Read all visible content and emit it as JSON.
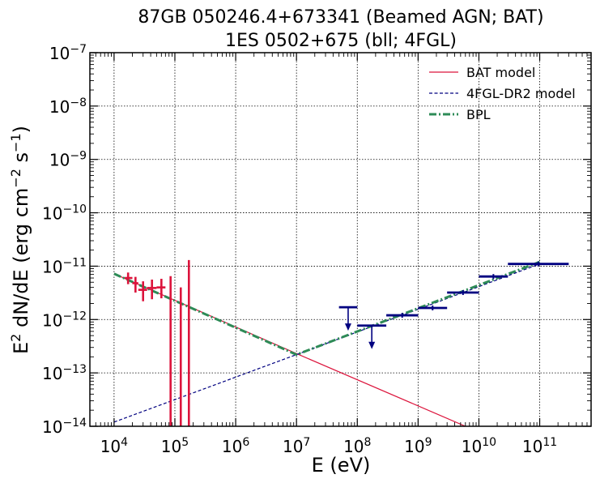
{
  "chart_data": {
    "type": "line",
    "title_lines": [
      "87GB 050246.4+673341 (Beamed AGN; BAT)",
      "1ES 0502+675 (bll; 4FGL)"
    ],
    "xlabel": "E (eV)",
    "ylabel_main": "E",
    "ylabel_sup1": "2",
    "ylabel_mid": " dN/dE (erg cm",
    "ylabel_sup2": "−2",
    "ylabel_mid2": " s",
    "ylabel_sup3": "−1",
    "ylabel_end": ")",
    "x_scale": "log",
    "y_scale": "log",
    "xlim": [
      4000,
      700000000000
    ],
    "ylim": [
      1e-14,
      1e-07
    ],
    "grid": true,
    "legend_placement": "top-right",
    "x_ticks": [
      {
        "value": 10000,
        "base": "10",
        "exp": "4"
      },
      {
        "value": 100000,
        "base": "10",
        "exp": "5"
      },
      {
        "value": 1000000,
        "base": "10",
        "exp": "6"
      },
      {
        "value": 10000000,
        "base": "10",
        "exp": "7"
      },
      {
        "value": 100000000,
        "base": "10",
        "exp": "8"
      },
      {
        "value": 1000000000,
        "base": "10",
        "exp": "9"
      },
      {
        "value": 10000000000,
        "base": "10",
        "exp": "10"
      },
      {
        "value": 100000000000,
        "base": "10",
        "exp": "11"
      }
    ],
    "y_ticks": [
      {
        "value": 1e-14,
        "base": "10",
        "exp": "−14"
      },
      {
        "value": 1e-13,
        "base": "10",
        "exp": "−13"
      },
      {
        "value": 1e-12,
        "base": "10",
        "exp": "−12"
      },
      {
        "value": 1e-11,
        "base": "10",
        "exp": "−11"
      },
      {
        "value": 1e-10,
        "base": "10",
        "exp": "−10"
      },
      {
        "value": 1e-09,
        "base": "10",
        "exp": "−9"
      },
      {
        "value": 1e-08,
        "base": "10",
        "exp": "−8"
      },
      {
        "value": 1e-07,
        "base": "10",
        "exp": "−7"
      }
    ],
    "series": [
      {
        "name": "BAT model",
        "color": "#dc143c",
        "style": "solid",
        "x": [
          10000,
          10000000,
          6000000000
        ],
        "y": [
          7.2e-12,
          2.3e-13,
          1e-14
        ]
      },
      {
        "name": "4FGL-DR2 model",
        "color": "#000080",
        "style": "dashed",
        "x": [
          10000,
          10000000,
          100000000000
        ],
        "y": [
          1.2e-14,
          2.2e-13,
          1.1e-11
        ]
      },
      {
        "name": "BPL",
        "color": "#2e8b57",
        "style": "dashdot",
        "x": [
          10000,
          10000000,
          100000000000
        ],
        "y": [
          7.2e-12,
          2.2e-13,
          1.2e-11
        ]
      }
    ],
    "bat_points": {
      "color": "#dc143c",
      "points": [
        {
          "x": 17000,
          "xlo": 15000,
          "xhi": 20000,
          "y": 6e-12,
          "ylo": 4.6e-12,
          "yhi": 7.6e-12
        },
        {
          "x": 22500,
          "xlo": 20000,
          "xhi": 25000,
          "y": 4.8e-12,
          "ylo": 3.2e-12,
          "yhi": 6.3e-12
        },
        {
          "x": 30000,
          "xlo": 25000,
          "xhi": 35000,
          "y": 3.6e-12,
          "ylo": 2.2e-12,
          "yhi": 5.2e-12
        },
        {
          "x": 42000,
          "xlo": 35000,
          "xhi": 50000,
          "y": 3.9e-12,
          "ylo": 2.4e-12,
          "yhi": 5.6e-12
        },
        {
          "x": 60000,
          "xlo": 50000,
          "xhi": 70000,
          "y": 4e-12,
          "ylo": 2.5e-12,
          "yhi": 5.8e-12
        },
        {
          "x": 85000,
          "xlo": 85000,
          "xhi": 85000,
          "y": 3e-12,
          "ylo": 1e-14,
          "yhi": 6.5e-12
        },
        {
          "x": 125000,
          "xlo": 125000,
          "xhi": 125000,
          "y": 2e-12,
          "ylo": 1e-14,
          "yhi": 4e-12
        },
        {
          "x": 170000,
          "xlo": 170000,
          "xhi": 170000,
          "y": 5e-12,
          "ylo": 1e-14,
          "yhi": 1.3e-11
        }
      ]
    },
    "fermi_points": {
      "color": "#000080",
      "points": [
        {
          "xlo": 50000000,
          "xhi": 100000000,
          "y": 1.7e-12,
          "upper_limit": true
        },
        {
          "xlo": 100000000,
          "xhi": 300000000,
          "y": 7.7e-13,
          "upper_limit": true
        },
        {
          "xlo": 300000000,
          "xhi": 1000000000,
          "y": 1.2e-12,
          "upper_limit": false
        },
        {
          "xlo": 1000000000,
          "xhi": 3000000000,
          "y": 1.65e-12,
          "upper_limit": false
        },
        {
          "xlo": 3000000000,
          "xhi": 10000000000,
          "y": 3.2e-12,
          "upper_limit": false
        },
        {
          "xlo": 10000000000,
          "xhi": 30000000000,
          "y": 6.4e-12,
          "upper_limit": false
        },
        {
          "xlo": 30000000000,
          "xhi": 300000000000,
          "y": 1.1e-11,
          "upper_limit": false
        }
      ]
    }
  }
}
